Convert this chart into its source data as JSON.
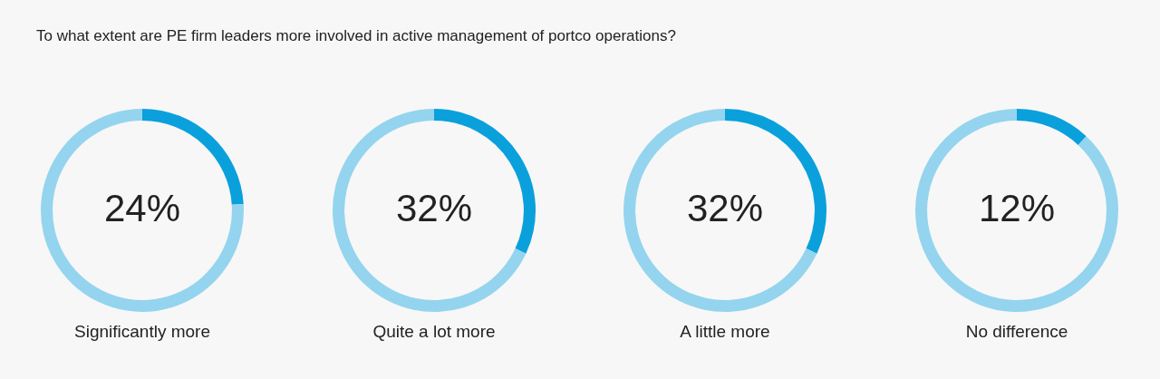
{
  "chart_data": [
    {
      "type": "donut",
      "title": "To what extent are PE firm leaders more involved in active management of portco operations?",
      "xlabel": "Significantly more",
      "categories": [
        null,
        null
      ],
      "values": [
        24,
        76
      ],
      "colors": [
        "#0aa0dc",
        "#94d4ee"
      ],
      "annotations": [
        "24%"
      ],
      "legend": false
    },
    {
      "type": "donut",
      "xlabel": "Quite a lot more",
      "categories": [
        null,
        null
      ],
      "values": [
        32,
        68
      ],
      "colors": [
        "#0aa0dc",
        "#94d4ee"
      ],
      "annotations": [
        "32%"
      ],
      "legend": false
    },
    {
      "type": "donut",
      "xlabel": "A little more",
      "categories": [
        null,
        null
      ],
      "values": [
        32,
        68
      ],
      "colors": [
        "#0aa0dc",
        "#94d4ee"
      ],
      "annotations": [
        "32%"
      ],
      "legend": false
    },
    {
      "type": "donut",
      "xlabel": "No difference",
      "categories": [
        null,
        null
      ],
      "values": [
        12,
        88
      ],
      "colors": [
        "#0aa0dc",
        "#94d4ee"
      ],
      "annotations": [
        "12%"
      ],
      "legend": false
    }
  ]
}
